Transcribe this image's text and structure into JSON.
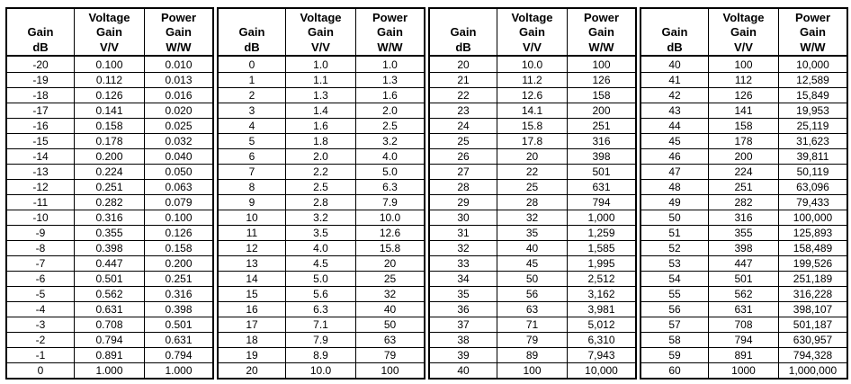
{
  "headers": {
    "col1_top": "Gain",
    "col1_unit": "dB",
    "col2_top_line1": "Voltage",
    "col2_top_line2": "Gain",
    "col2_unit": "V/V",
    "col3_top_line1": "Power",
    "col3_top_line2": "Gain",
    "col3_unit": "W/W"
  },
  "tables": [
    {
      "rows": [
        [
          "-20",
          "0.100",
          "0.010"
        ],
        [
          "-19",
          "0.112",
          "0.013"
        ],
        [
          "-18",
          "0.126",
          "0.016"
        ],
        [
          "-17",
          "0.141",
          "0.020"
        ],
        [
          "-16",
          "0.158",
          "0.025"
        ],
        [
          "-15",
          "0.178",
          "0.032"
        ],
        [
          "-14",
          "0.200",
          "0.040"
        ],
        [
          "-13",
          "0.224",
          "0.050"
        ],
        [
          "-12",
          "0.251",
          "0.063"
        ],
        [
          "-11",
          "0.282",
          "0.079"
        ],
        [
          "-10",
          "0.316",
          "0.100"
        ],
        [
          "-9",
          "0.355",
          "0.126"
        ],
        [
          "-8",
          "0.398",
          "0.158"
        ],
        [
          "-7",
          "0.447",
          "0.200"
        ],
        [
          "-6",
          "0.501",
          "0.251"
        ],
        [
          "-5",
          "0.562",
          "0.316"
        ],
        [
          "-4",
          "0.631",
          "0.398"
        ],
        [
          "-3",
          "0.708",
          "0.501"
        ],
        [
          "-2",
          "0.794",
          "0.631"
        ],
        [
          "-1",
          "0.891",
          "0.794"
        ],
        [
          "0",
          "1.000",
          "1.000"
        ]
      ]
    },
    {
      "rows": [
        [
          "0",
          "1.0",
          "1.0"
        ],
        [
          "1",
          "1.1",
          "1.3"
        ],
        [
          "2",
          "1.3",
          "1.6"
        ],
        [
          "3",
          "1.4",
          "2.0"
        ],
        [
          "4",
          "1.6",
          "2.5"
        ],
        [
          "5",
          "1.8",
          "3.2"
        ],
        [
          "6",
          "2.0",
          "4.0"
        ],
        [
          "7",
          "2.2",
          "5.0"
        ],
        [
          "8",
          "2.5",
          "6.3"
        ],
        [
          "9",
          "2.8",
          "7.9"
        ],
        [
          "10",
          "3.2",
          "10.0"
        ],
        [
          "11",
          "3.5",
          "12.6"
        ],
        [
          "12",
          "4.0",
          "15.8"
        ],
        [
          "13",
          "4.5",
          "20"
        ],
        [
          "14",
          "5.0",
          "25"
        ],
        [
          "15",
          "5.6",
          "32"
        ],
        [
          "16",
          "6.3",
          "40"
        ],
        [
          "17",
          "7.1",
          "50"
        ],
        [
          "18",
          "7.9",
          "63"
        ],
        [
          "19",
          "8.9",
          "79"
        ],
        [
          "20",
          "10.0",
          "100"
        ]
      ]
    },
    {
      "rows": [
        [
          "20",
          "10.0",
          "100"
        ],
        [
          "21",
          "11.2",
          "126"
        ],
        [
          "22",
          "12.6",
          "158"
        ],
        [
          "23",
          "14.1",
          "200"
        ],
        [
          "24",
          "15.8",
          "251"
        ],
        [
          "25",
          "17.8",
          "316"
        ],
        [
          "26",
          "20",
          "398"
        ],
        [
          "27",
          "22",
          "501"
        ],
        [
          "28",
          "25",
          "631"
        ],
        [
          "29",
          "28",
          "794"
        ],
        [
          "30",
          "32",
          "1,000"
        ],
        [
          "31",
          "35",
          "1,259"
        ],
        [
          "32",
          "40",
          "1,585"
        ],
        [
          "33",
          "45",
          "1,995"
        ],
        [
          "34",
          "50",
          "2,512"
        ],
        [
          "35",
          "56",
          "3,162"
        ],
        [
          "36",
          "63",
          "3,981"
        ],
        [
          "37",
          "71",
          "5,012"
        ],
        [
          "38",
          "79",
          "6,310"
        ],
        [
          "39",
          "89",
          "7,943"
        ],
        [
          "40",
          "100",
          "10,000"
        ]
      ]
    },
    {
      "rows": [
        [
          "40",
          "100",
          "10,000"
        ],
        [
          "41",
          "112",
          "12,589"
        ],
        [
          "42",
          "126",
          "15,849"
        ],
        [
          "43",
          "141",
          "19,953"
        ],
        [
          "44",
          "158",
          "25,119"
        ],
        [
          "45",
          "178",
          "31,623"
        ],
        [
          "46",
          "200",
          "39,811"
        ],
        [
          "47",
          "224",
          "50,119"
        ],
        [
          "48",
          "251",
          "63,096"
        ],
        [
          "49",
          "282",
          "79,433"
        ],
        [
          "50",
          "316",
          "100,000"
        ],
        [
          "51",
          "355",
          "125,893"
        ],
        [
          "52",
          "398",
          "158,489"
        ],
        [
          "53",
          "447",
          "199,526"
        ],
        [
          "54",
          "501",
          "251,189"
        ],
        [
          "55",
          "562",
          "316,228"
        ],
        [
          "56",
          "631",
          "398,107"
        ],
        [
          "57",
          "708",
          "501,187"
        ],
        [
          "58",
          "794",
          "630,957"
        ],
        [
          "59",
          "891",
          "794,328"
        ],
        [
          "60",
          "1000",
          "1,000,000"
        ]
      ]
    }
  ]
}
